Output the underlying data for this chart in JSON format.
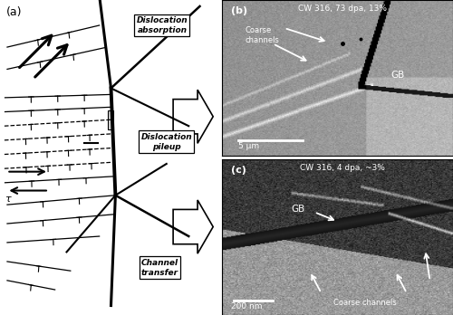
{
  "panel_a_label": "(a)",
  "panel_b_label": "(b)",
  "panel_c_label": "(c)",
  "label_absorption": "Dislocation\nabsorption",
  "label_pileup": "Dislocation\npileup",
  "label_channel": "Channel\ntransfer",
  "text_b_title": "CW 316, 73 dpa, 13%",
  "text_b_coarse": "Coarse\nchannels",
  "text_b_gb": "GB",
  "text_b_scale": "5 μm",
  "text_c_title": "CW 316, 4 dpa, ~3%",
  "text_c_gb": "GB",
  "text_c_coarse": "Coarse channels",
  "text_c_scale": "200 nm",
  "bg_color": "#ffffff"
}
